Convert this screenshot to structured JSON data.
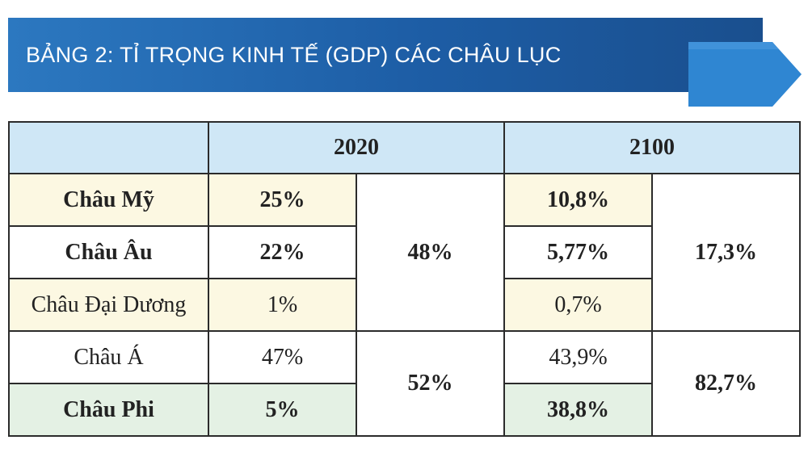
{
  "banner": {
    "title": "BẢNG 2: TỈ TRỌNG KINH TẾ (GDP) CÁC CHÂU LỤC",
    "colors": {
      "primary": "#1d5da5",
      "arrow": "#2f86d2"
    }
  },
  "table": {
    "headers": {
      "corner": "",
      "year1": "2020",
      "year2": "2100"
    },
    "rows": [
      {
        "name": "Châu Mỹ",
        "y2020": "25%",
        "y2100": "10,8%"
      },
      {
        "name": "Châu Âu",
        "y2020": "22%",
        "y2100": "5,77%"
      },
      {
        "name": "Châu Đại Dương",
        "y2020": "1%",
        "y2100": "0,7%"
      },
      {
        "name": "Châu Á",
        "y2020": "47%",
        "y2100": "43,9%"
      },
      {
        "name": "Châu Phi",
        "y2020": "5%",
        "y2100": "38,8%"
      }
    ],
    "groups": {
      "group1": {
        "total2020": "48%",
        "total2100": "17,3%"
      },
      "group2": {
        "total2020": "52%",
        "total2100": "82,7%"
      }
    }
  }
}
